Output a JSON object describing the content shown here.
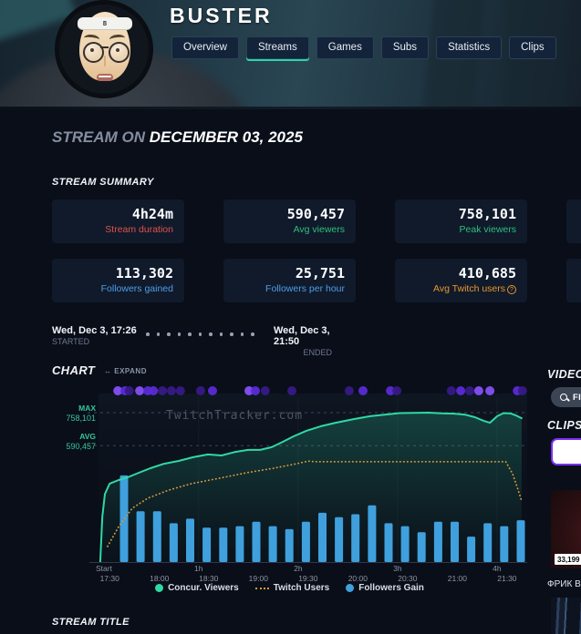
{
  "header": {
    "title": "BUSTER",
    "tabs": [
      {
        "label": "Overview",
        "active": false
      },
      {
        "label": "Streams",
        "active": true
      },
      {
        "label": "Games",
        "active": false
      },
      {
        "label": "Subs",
        "active": false
      },
      {
        "label": "Statistics",
        "active": false
      },
      {
        "label": "Clips",
        "active": false
      }
    ]
  },
  "page": {
    "section_prefix": "STREAM ON",
    "section_date": "DECEMBER 03, 2025",
    "summary_title": "STREAM SUMMARY",
    "chart_title": "CHART",
    "expand_label": "EXPAND",
    "stream_title_heading": "STREAM TITLE"
  },
  "summary": {
    "cards": [
      {
        "value": "4h24m",
        "label": "Stream duration",
        "label_color": "#e1524a"
      },
      {
        "value": "590,457",
        "label": "Avg viewers",
        "label_color": "#2fbe7d"
      },
      {
        "value": "758,101",
        "label": "Peak viewers",
        "label_color": "#2fbe7d"
      },
      {
        "value": "",
        "label": "",
        "label_color": ""
      },
      {
        "value": "113,302",
        "label": "Followers gained",
        "label_color": "#4d9fe8"
      },
      {
        "value": "25,751",
        "label": "Followers per hour",
        "label_color": "#4d9fe8"
      },
      {
        "value": "410,685",
        "label": "Avg Twitch users",
        "label_color": "#e8962e"
      },
      {
        "value": "",
        "label": "",
        "label_color": ""
      }
    ]
  },
  "timeline": {
    "started_value": "Wed, Dec 3, 17:26",
    "started_label": "STARTED",
    "ended_value": "Wed, Dec 3, 21:50",
    "ended_label": "ENDED"
  },
  "chart_data": {
    "type": "composite",
    "watermark": "TwitchTracker.com",
    "ylim": [
      0,
      758101
    ],
    "annotations": {
      "max": {
        "label": "MAX",
        "display": "758,101",
        "value": 758101
      },
      "avg": {
        "label": "AVG",
        "display": "590,457",
        "value": 590457
      }
    },
    "x_axis": {
      "origin_label": "Start",
      "ticks": [
        {
          "time": "17:30",
          "hour": "",
          "x01": 0.026
        },
        {
          "time": "18:00",
          "hour": "",
          "x01": 0.142
        },
        {
          "time": "18:30",
          "hour": "1h",
          "x01": 0.257
        },
        {
          "time": "19:00",
          "hour": "",
          "x01": 0.373
        },
        {
          "time": "19:30",
          "hour": "2h",
          "x01": 0.489
        },
        {
          "time": "20:00",
          "hour": "",
          "x01": 0.605
        },
        {
          "time": "20:30",
          "hour": "3h",
          "x01": 0.721
        },
        {
          "time": "21:00",
          "hour": "",
          "x01": 0.837
        },
        {
          "time": "21:30",
          "hour": "4h",
          "x01": 0.953
        }
      ]
    },
    "series": [
      {
        "name": "Concur. Viewers",
        "type": "area-line",
        "color": "#2fd9a4",
        "points": [
          [
            0.004,
            0
          ],
          [
            0.009,
            230000
          ],
          [
            0.015,
            345000
          ],
          [
            0.026,
            398000
          ],
          [
            0.047,
            416000
          ],
          [
            0.068,
            430000
          ],
          [
            0.094,
            453000
          ],
          [
            0.121,
            476000
          ],
          [
            0.153,
            499000
          ],
          [
            0.187,
            513000
          ],
          [
            0.221,
            532000
          ],
          [
            0.255,
            546000
          ],
          [
            0.287,
            541000
          ],
          [
            0.319,
            559000
          ],
          [
            0.349,
            569000
          ],
          [
            0.377,
            569000
          ],
          [
            0.404,
            583000
          ],
          [
            0.43,
            610000
          ],
          [
            0.455,
            638000
          ],
          [
            0.485,
            666000
          ],
          [
            0.519,
            689000
          ],
          [
            0.553,
            707000
          ],
          [
            0.598,
            726000
          ],
          [
            0.634,
            740000
          ],
          [
            0.672,
            749000
          ],
          [
            0.702,
            756000
          ],
          [
            0.738,
            757000
          ],
          [
            0.77,
            758101
          ],
          [
            0.8,
            755000
          ],
          [
            0.83,
            753000
          ],
          [
            0.855,
            748000
          ],
          [
            0.878,
            735000
          ],
          [
            0.898,
            717000
          ],
          [
            0.913,
            707000
          ],
          [
            0.93,
            740000
          ],
          [
            0.945,
            756000
          ],
          [
            0.962,
            754000
          ],
          [
            0.974,
            744000
          ],
          [
            0.987,
            730000
          ]
        ]
      },
      {
        "name": "Twitch Users",
        "type": "dotted-line",
        "color": "#d99a3a",
        "points": [
          [
            0.021,
            79000
          ],
          [
            0.047,
            180000
          ],
          [
            0.079,
            273000
          ],
          [
            0.115,
            324000
          ],
          [
            0.164,
            365000
          ],
          [
            0.217,
            398000
          ],
          [
            0.281,
            425000
          ],
          [
            0.345,
            453000
          ],
          [
            0.409,
            476000
          ],
          [
            0.462,
            499000
          ],
          [
            0.489,
            512000
          ],
          [
            0.506,
            509000
          ],
          [
            0.95,
            509000
          ],
          [
            0.966,
            448000
          ],
          [
            0.979,
            365000
          ],
          [
            0.987,
            310000
          ]
        ]
      },
      {
        "name": "Followers Gain",
        "type": "bar",
        "color": "#3fa0dd",
        "x01_start": 0.0596,
        "x01_step": 0.03856,
        "value_scale": "fraction-of-plot-height",
        "values": [
          0.58,
          0.34,
          0.34,
          0.26,
          0.29,
          0.23,
          0.23,
          0.24,
          0.27,
          0.24,
          0.22,
          0.27,
          0.33,
          0.3,
          0.32,
          0.38,
          0.26,
          0.24,
          0.2,
          0.27,
          0.27,
          0.17,
          0.26,
          0.24,
          0.28
        ]
      }
    ],
    "activity_dots": {
      "tones": [
        "#371a86",
        "#5a2bd6",
        "#8450f5"
      ],
      "dots": [
        [
          0.045,
          2
        ],
        [
          0.062,
          1
        ],
        [
          0.072,
          0
        ],
        [
          0.096,
          2
        ],
        [
          0.115,
          1
        ],
        [
          0.128,
          1
        ],
        [
          0.149,
          0
        ],
        [
          0.17,
          0
        ],
        [
          0.191,
          0
        ],
        [
          0.238,
          0
        ],
        [
          0.266,
          1
        ],
        [
          0.351,
          2
        ],
        [
          0.366,
          1
        ],
        [
          0.389,
          0
        ],
        [
          0.451,
          0
        ],
        [
          0.585,
          0
        ],
        [
          0.617,
          1
        ],
        [
          0.681,
          1
        ],
        [
          0.696,
          0
        ],
        [
          0.823,
          0
        ],
        [
          0.845,
          1
        ],
        [
          0.866,
          0
        ],
        [
          0.887,
          2
        ],
        [
          0.913,
          2
        ],
        [
          0.977,
          1
        ],
        [
          0.989,
          0
        ]
      ]
    },
    "legend_position": "bottom-center"
  },
  "side": {
    "videos_title": "VIDEOS",
    "find_button": "FIND VOD",
    "clips_title": "CLIPS",
    "clip_views": "33,199",
    "clip_caption": "ФРИК В"
  }
}
